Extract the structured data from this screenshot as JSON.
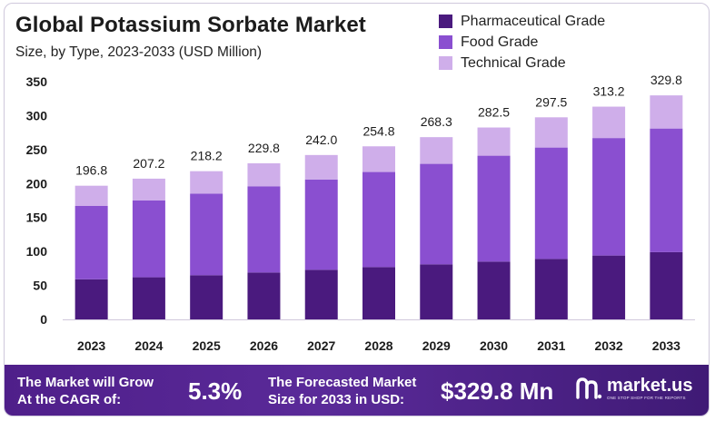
{
  "colors": {
    "pharmaceutical": "#4a1a7e",
    "food": "#8a4fd0",
    "technical": "#cfaeea",
    "footer": "#4f1f8a"
  },
  "chart_data": {
    "type": "bar",
    "stacked": true,
    "title": "Global Potassium Sorbate Market",
    "subtitle": "Size, by Type, 2023-2033 (USD Million)",
    "categories": [
      "2023",
      "2024",
      "2025",
      "2026",
      "2027",
      "2028",
      "2029",
      "2030",
      "2031",
      "2032",
      "2033"
    ],
    "series": [
      {
        "name": "Pharmaceutical Grade",
        "values": [
          59,
          62,
          65,
          69,
          73,
          77,
          81,
          85,
          89,
          94,
          99
        ]
      },
      {
        "name": "Food Grade",
        "values": [
          108,
          113,
          120,
          127,
          133,
          140,
          148,
          156,
          164,
          173,
          182
        ]
      },
      {
        "name": "Technical Grade",
        "values": [
          29.8,
          32.2,
          33.2,
          33.8,
          36.0,
          37.8,
          39.3,
          41.5,
          44.5,
          46.2,
          48.8
        ]
      }
    ],
    "totals": [
      "196.8",
      "207.2",
      "218.2",
      "229.8",
      "242.0",
      "254.8",
      "268.3",
      "282.5",
      "297.5",
      "313.2",
      "329.8"
    ],
    "yticks": [
      "0",
      "50",
      "100",
      "150",
      "200",
      "250",
      "300",
      "350"
    ],
    "ylim": [
      0,
      350
    ],
    "xlabel": "",
    "ylabel": "",
    "legend_position": "top-right",
    "grid": false
  },
  "footer": {
    "cagr_label_line1": "The Market will Grow",
    "cagr_label_line2": "At the CAGR of:",
    "cagr_value": "5.3%",
    "forecast_label_line1": "The Forecasted Market",
    "forecast_label_line2": "Size for 2033 in USD:",
    "forecast_value": "$329.8 Mn",
    "brand": "market.us",
    "brand_tagline": "ONE STOP SHOP FOR THE REPORTS"
  }
}
